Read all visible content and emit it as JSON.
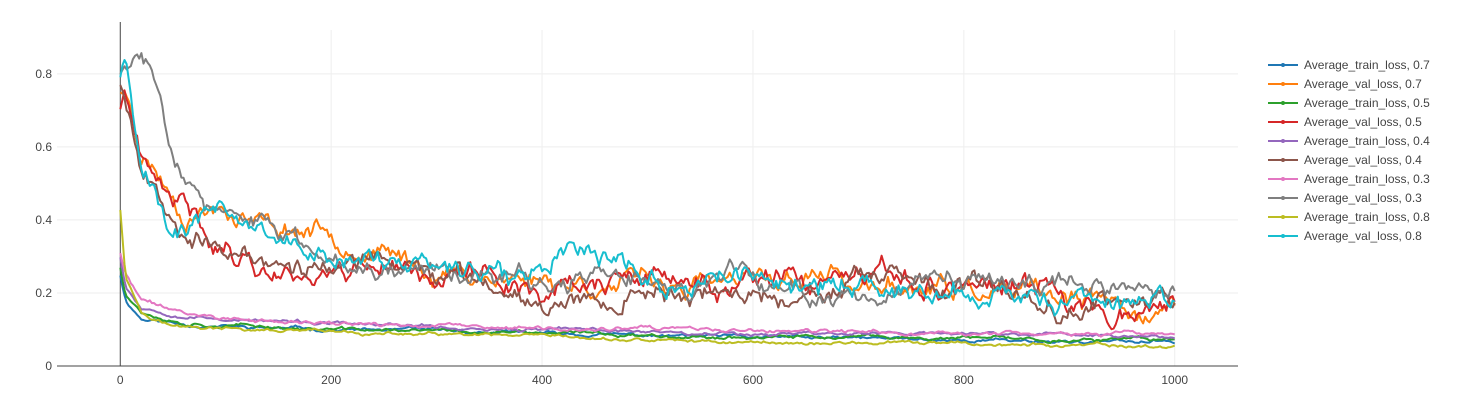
{
  "chart_data": {
    "type": "line",
    "title": "",
    "xlabel": "",
    "ylabel": "",
    "xlim": [
      -60,
      1060
    ],
    "ylim": [
      0,
      0.92
    ],
    "x_ticks": [
      0,
      200,
      400,
      600,
      800,
      1000
    ],
    "y_ticks": [
      0,
      0.2,
      0.4,
      0.6,
      0.8
    ],
    "x_tick_labels": [
      "0",
      "200",
      "400",
      "600",
      "800",
      "1000"
    ],
    "y_tick_labels": [
      "0",
      "0.2",
      "0.4",
      "0.6",
      "0.8"
    ],
    "grid": true,
    "legend_position": "right",
    "series": [
      {
        "name": "Average_train_loss, 0.7",
        "color": "#1f77b4",
        "seed": 11,
        "noise": 0.006,
        "points": [
          [
            0,
            0.25
          ],
          [
            5,
            0.18
          ],
          [
            20,
            0.13
          ],
          [
            60,
            0.115
          ],
          [
            120,
            0.105
          ],
          [
            200,
            0.1
          ],
          [
            300,
            0.095
          ],
          [
            400,
            0.088
          ],
          [
            500,
            0.083
          ],
          [
            600,
            0.078
          ],
          [
            700,
            0.075
          ],
          [
            800,
            0.072
          ],
          [
            900,
            0.068
          ],
          [
            1000,
            0.065
          ]
        ]
      },
      {
        "name": "Average_val_loss, 0.7",
        "color": "#ff7f0e",
        "seed": 23,
        "noise": 0.035,
        "points": [
          [
            0,
            0.76
          ],
          [
            10,
            0.72
          ],
          [
            20,
            0.6
          ],
          [
            40,
            0.52
          ],
          [
            60,
            0.43
          ],
          [
            100,
            0.45
          ],
          [
            150,
            0.38
          ],
          [
            200,
            0.38
          ],
          [
            250,
            0.3
          ],
          [
            300,
            0.26
          ],
          [
            350,
            0.25
          ],
          [
            400,
            0.24
          ],
          [
            500,
            0.22
          ],
          [
            600,
            0.22
          ],
          [
            680,
            0.26
          ],
          [
            700,
            0.21
          ],
          [
            800,
            0.2
          ],
          [
            900,
            0.17
          ],
          [
            1000,
            0.15
          ]
        ]
      },
      {
        "name": "Average_train_loss, 0.5",
        "color": "#2ca02c",
        "seed": 37,
        "noise": 0.006,
        "points": [
          [
            0,
            0.27
          ],
          [
            5,
            0.2
          ],
          [
            20,
            0.15
          ],
          [
            60,
            0.12
          ],
          [
            120,
            0.11
          ],
          [
            200,
            0.1
          ],
          [
            300,
            0.095
          ],
          [
            400,
            0.09
          ],
          [
            500,
            0.085
          ],
          [
            600,
            0.08
          ],
          [
            700,
            0.078
          ],
          [
            800,
            0.075
          ],
          [
            900,
            0.072
          ],
          [
            1000,
            0.07
          ]
        ]
      },
      {
        "name": "Average_val_loss, 0.5",
        "color": "#d62728",
        "seed": 41,
        "noise": 0.04,
        "points": [
          [
            0,
            0.7
          ],
          [
            5,
            0.76
          ],
          [
            20,
            0.55
          ],
          [
            40,
            0.45
          ],
          [
            60,
            0.42
          ],
          [
            100,
            0.33
          ],
          [
            150,
            0.26
          ],
          [
            200,
            0.27
          ],
          [
            250,
            0.3
          ],
          [
            300,
            0.26
          ],
          [
            400,
            0.22
          ],
          [
            500,
            0.23
          ],
          [
            600,
            0.21
          ],
          [
            700,
            0.22
          ],
          [
            800,
            0.22
          ],
          [
            850,
            0.22
          ],
          [
            900,
            0.17
          ],
          [
            950,
            0.17
          ],
          [
            1000,
            0.17
          ]
        ]
      },
      {
        "name": "Average_train_loss, 0.4",
        "color": "#9467bd",
        "seed": 53,
        "noise": 0.006,
        "points": [
          [
            0,
            0.3
          ],
          [
            5,
            0.22
          ],
          [
            20,
            0.16
          ],
          [
            60,
            0.14
          ],
          [
            120,
            0.125
          ],
          [
            200,
            0.115
          ],
          [
            300,
            0.105
          ],
          [
            400,
            0.1
          ],
          [
            500,
            0.095
          ],
          [
            600,
            0.09
          ],
          [
            700,
            0.09
          ],
          [
            800,
            0.088
          ],
          [
            900,
            0.085
          ],
          [
            1000,
            0.08
          ]
        ]
      },
      {
        "name": "Average_val_loss, 0.4",
        "color": "#8c564b",
        "seed": 67,
        "noise": 0.035,
        "points": [
          [
            0,
            0.78
          ],
          [
            10,
            0.7
          ],
          [
            20,
            0.55
          ],
          [
            40,
            0.46
          ],
          [
            60,
            0.4
          ],
          [
            100,
            0.3
          ],
          [
            150,
            0.28
          ],
          [
            200,
            0.28
          ],
          [
            250,
            0.27
          ],
          [
            300,
            0.25
          ],
          [
            400,
            0.19
          ],
          [
            500,
            0.2
          ],
          [
            600,
            0.2
          ],
          [
            700,
            0.22
          ],
          [
            800,
            0.2
          ],
          [
            900,
            0.18
          ],
          [
            1000,
            0.18
          ]
        ]
      },
      {
        "name": "Average_train_loss, 0.3",
        "color": "#e377c2",
        "seed": 71,
        "noise": 0.007,
        "points": [
          [
            0,
            0.31
          ],
          [
            5,
            0.25
          ],
          [
            20,
            0.18
          ],
          [
            60,
            0.145
          ],
          [
            120,
            0.125
          ],
          [
            200,
            0.115
          ],
          [
            300,
            0.11
          ],
          [
            400,
            0.1
          ],
          [
            500,
            0.1
          ],
          [
            600,
            0.095
          ],
          [
            700,
            0.09
          ],
          [
            800,
            0.09
          ],
          [
            900,
            0.088
          ],
          [
            1000,
            0.085
          ]
        ]
      },
      {
        "name": "Average_val_loss, 0.3",
        "color": "#7f7f7f",
        "seed": 83,
        "noise": 0.035,
        "points": [
          [
            0,
            0.8
          ],
          [
            10,
            0.82
          ],
          [
            20,
            0.85
          ],
          [
            30,
            0.8
          ],
          [
            40,
            0.7
          ],
          [
            60,
            0.55
          ],
          [
            80,
            0.45
          ],
          [
            100,
            0.4
          ],
          [
            150,
            0.35
          ],
          [
            200,
            0.3
          ],
          [
            300,
            0.27
          ],
          [
            400,
            0.23
          ],
          [
            500,
            0.23
          ],
          [
            600,
            0.22
          ],
          [
            700,
            0.2
          ],
          [
            800,
            0.2
          ],
          [
            900,
            0.22
          ],
          [
            1000,
            0.22
          ]
        ]
      },
      {
        "name": "Average_train_loss, 0.8",
        "color": "#bcbd22",
        "seed": 97,
        "noise": 0.006,
        "points": [
          [
            0,
            0.43
          ],
          [
            5,
            0.25
          ],
          [
            20,
            0.15
          ],
          [
            50,
            0.11
          ],
          [
            100,
            0.1
          ],
          [
            200,
            0.09
          ],
          [
            300,
            0.085
          ],
          [
            400,
            0.075
          ],
          [
            500,
            0.07
          ],
          [
            600,
            0.065
          ],
          [
            700,
            0.063
          ],
          [
            800,
            0.06
          ],
          [
            900,
            0.055
          ],
          [
            1000,
            0.052
          ]
        ]
      },
      {
        "name": "Average_val_loss, 0.8",
        "color": "#17becf",
        "seed": 101,
        "noise": 0.04,
        "points": [
          [
            0,
            0.8
          ],
          [
            5,
            0.84
          ],
          [
            10,
            0.7
          ],
          [
            20,
            0.55
          ],
          [
            40,
            0.45
          ],
          [
            60,
            0.38
          ],
          [
            100,
            0.42
          ],
          [
            150,
            0.36
          ],
          [
            200,
            0.3
          ],
          [
            300,
            0.28
          ],
          [
            400,
            0.26
          ],
          [
            430,
            0.36
          ],
          [
            500,
            0.25
          ],
          [
            600,
            0.23
          ],
          [
            700,
            0.22
          ],
          [
            800,
            0.2
          ],
          [
            900,
            0.18
          ],
          [
            1000,
            0.17
          ]
        ]
      }
    ]
  }
}
